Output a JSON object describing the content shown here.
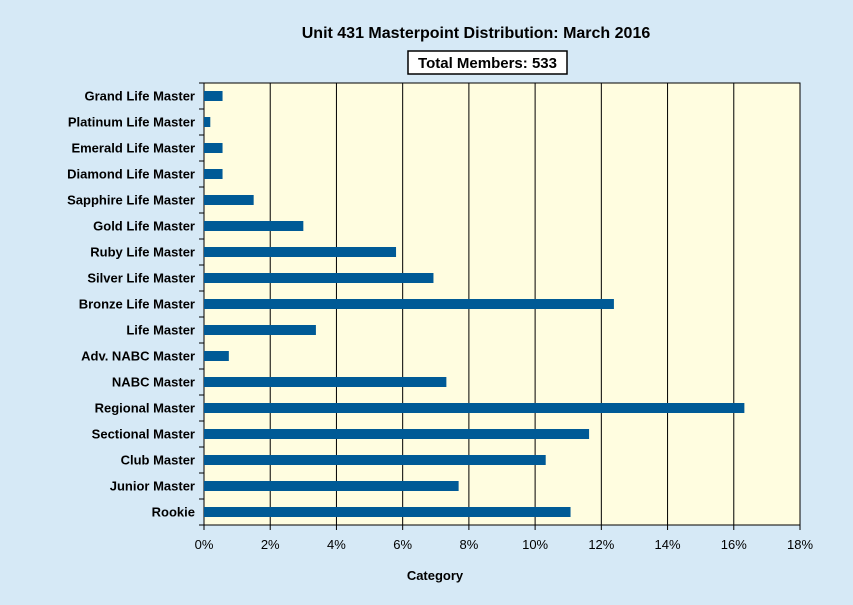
{
  "chart_data": {
    "type": "bar",
    "orientation": "horizontal",
    "title": "Unit 431 Masterpoint Distribution: March 2016",
    "subtitle": "Total Members: 533",
    "xlabel": "Category",
    "ylabel": "",
    "xlim": [
      0,
      18
    ],
    "x_ticks": [
      "0%",
      "2%",
      "4%",
      "6%",
      "8%",
      "10%",
      "12%",
      "14%",
      "16%",
      "18%"
    ],
    "x_tick_values": [
      0,
      2,
      4,
      6,
      8,
      10,
      12,
      14,
      16,
      18
    ],
    "grid": true,
    "colors": {
      "bar": "#005a96",
      "plot_background": "#fffde0",
      "page_background": "#d6e9f6"
    },
    "categories": [
      "Grand Life Master",
      "Platinum Life Master",
      "Emerald Life Master",
      "Diamond Life Master",
      "Sapphire Life Master",
      "Gold Life Master",
      "Ruby Life Master",
      "Silver Life Master",
      "Bronze Life Master",
      "Life Master",
      "Adv. NABC Master",
      "NABC Master",
      "Regional Master",
      "Sectional Master",
      "Club Master",
      "Junior Master",
      "Rookie"
    ],
    "values": [
      0.56,
      0.19,
      0.56,
      0.56,
      1.5,
      3.0,
      5.8,
      6.93,
      12.38,
      3.38,
      0.75,
      7.32,
      16.32,
      11.63,
      10.32,
      7.69,
      11.07
    ]
  }
}
